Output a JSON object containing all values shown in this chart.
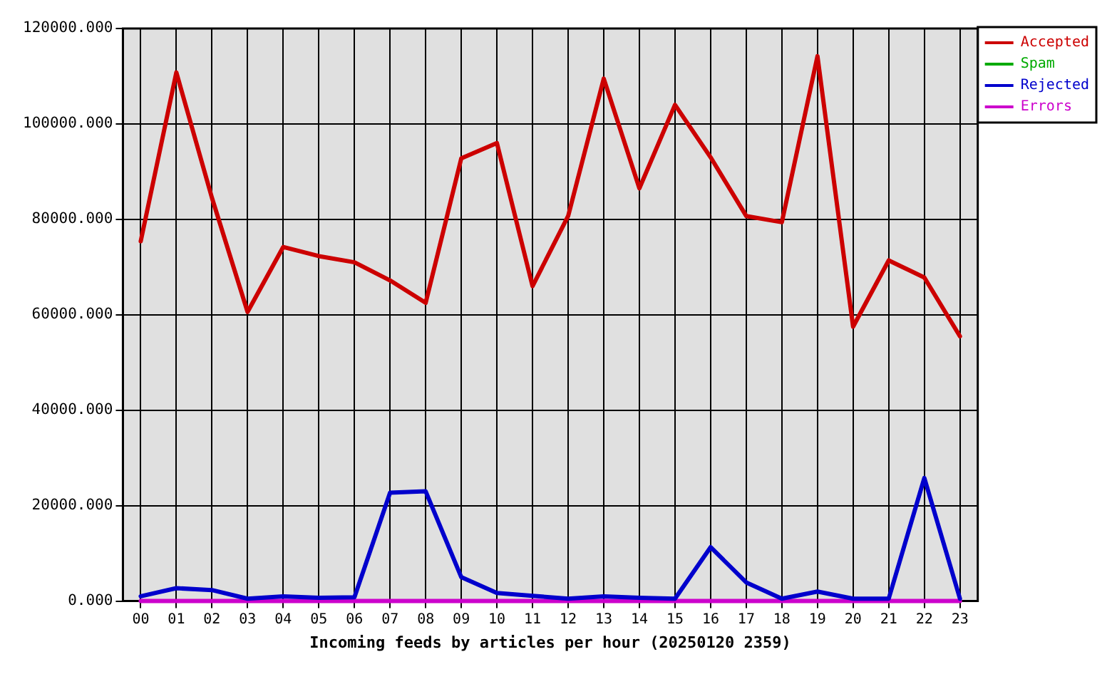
{
  "chart_data": {
    "type": "line",
    "xlabel": "Incoming feeds by articles per hour (20250120 2359)",
    "categories": [
      "00",
      "01",
      "02",
      "03",
      "04",
      "05",
      "06",
      "07",
      "08",
      "09",
      "10",
      "11",
      "12",
      "13",
      "14",
      "15",
      "16",
      "17",
      "18",
      "19",
      "20",
      "21",
      "22",
      "23"
    ],
    "series": [
      {
        "name": "Accepted",
        "color": "#cc0000",
        "values": [
          75400,
          110800,
          84500,
          60600,
          74200,
          72300,
          71000,
          67200,
          62500,
          92800,
          96000,
          66000,
          80700,
          109500,
          86500,
          104000,
          93000,
          80700,
          79400,
          114200,
          57500,
          71400,
          67800,
          55500
        ]
      },
      {
        "name": "Spam",
        "color": "#00aa00",
        "values": [
          null,
          null,
          null,
          null,
          null,
          null,
          null,
          null,
          null,
          null,
          null,
          null,
          null,
          null,
          null,
          null,
          null,
          null,
          null,
          null,
          null,
          null,
          null,
          null
        ]
      },
      {
        "name": "Rejected",
        "color": "#0000cc",
        "values": [
          1000,
          2700,
          2300,
          500,
          1000,
          700,
          800,
          22700,
          23000,
          5000,
          1700,
          1100,
          500,
          1000,
          700,
          500,
          11300,
          3900,
          500,
          2000,
          500,
          500,
          25800,
          500
        ]
      },
      {
        "name": "Errors",
        "color": "#cc00cc",
        "values": [
          0,
          0,
          0,
          0,
          0,
          0,
          0,
          0,
          0,
          0,
          0,
          0,
          0,
          0,
          0,
          0,
          0,
          0,
          0,
          0,
          0,
          0,
          0,
          0
        ]
      }
    ],
    "ylim": [
      0,
      120000
    ],
    "yticks": [
      {
        "value": 0,
        "label": "0.000"
      },
      {
        "value": 20000,
        "label": "20000.000"
      },
      {
        "value": 40000,
        "label": "40000.000"
      },
      {
        "value": 60000,
        "label": "60000.000"
      },
      {
        "value": 80000,
        "label": "80000.000"
      },
      {
        "value": 100000,
        "label": "100000.000"
      },
      {
        "value": 120000,
        "label": "120000.000"
      }
    ],
    "grid": true,
    "legend": "top right"
  }
}
